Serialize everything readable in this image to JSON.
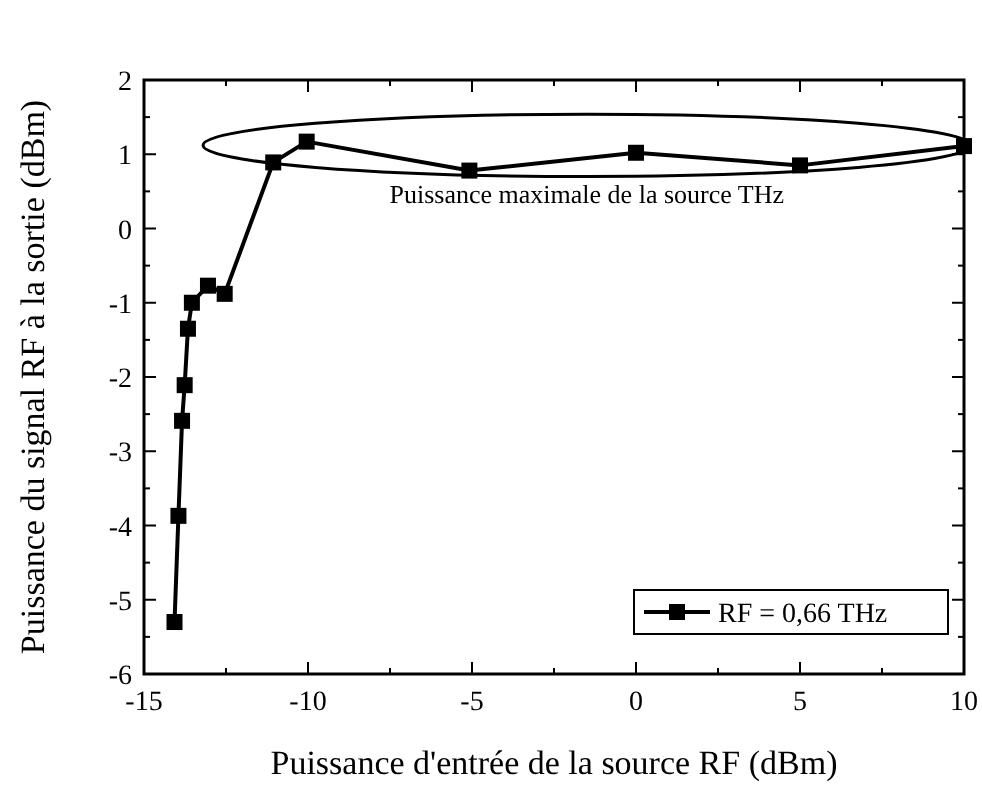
{
  "chart_data": {
    "type": "line",
    "xlabel": "Puissance d'entrée de la source RF (dBm)",
    "ylabel": "Puissance du signal RF à la sortie (dBm)",
    "x": [
      -14.07,
      -13.95,
      -13.84,
      -13.76,
      -13.66,
      -13.54,
      -13.05,
      -12.54,
      -11.06,
      -10.04,
      -5.08,
      0,
      5,
      10
    ],
    "series": [
      {
        "name": "RF = 0,66 THz",
        "color": "#000000",
        "values": [
          -5.3,
          -3.87,
          -2.59,
          -2.11,
          -1.35,
          -1.0,
          -0.77,
          -0.88,
          0.89,
          1.17,
          0.78,
          1.02,
          0.85,
          1.11
        ]
      }
    ],
    "xlim": [
      -15,
      10
    ],
    "ylim": [
      -6,
      2
    ],
    "xticks": [
      -15,
      {
        "value": -12.5,
        "label": null
      },
      -10,
      {
        "value": -7.5,
        "label": null
      },
      -5,
      {
        "value": -2.5,
        "label": null
      },
      0,
      {
        "value": 2.5,
        "label": null
      },
      5,
      {
        "value": 7.5,
        "label": null
      },
      10
    ],
    "yticks": [
      -6,
      {
        "value": -5.5,
        "label": null
      },
      -5,
      {
        "value": -4.5,
        "label": null
      },
      -4,
      {
        "value": -3.5,
        "label": null
      },
      -3,
      {
        "value": -2.5,
        "label": null
      },
      -2,
      {
        "value": -1.5,
        "label": null
      },
      -1,
      {
        "value": -0.5,
        "label": null
      },
      0,
      {
        "value": 0.5,
        "label": null
      },
      1,
      {
        "value": 1.5,
        "label": null
      },
      2
    ],
    "marker": "square",
    "line_style": "solid",
    "legend": "bottom right",
    "grid": false,
    "annotations": [
      "Puissance maximale de la source THz"
    ]
  }
}
